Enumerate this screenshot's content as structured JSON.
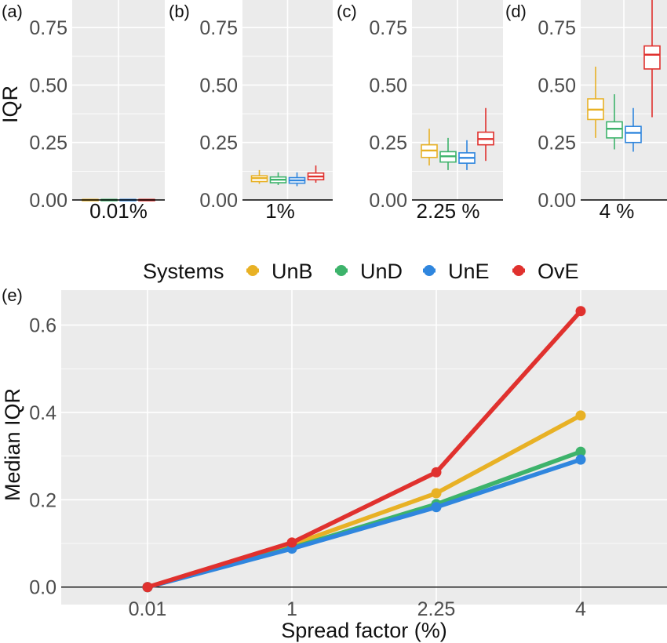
{
  "colors": {
    "UnB": "#E8B125",
    "UnD": "#3DB36B",
    "UnE": "#2F86DE",
    "OvE": "#E0312E",
    "panel_bg": "#EBEBEB",
    "grid": "#FFFFFF"
  },
  "chart_data": [
    {
      "type": "box",
      "panel_label": "(a)",
      "xlabel": "0.01%",
      "ylabel": "IQR",
      "ylim": [
        0,
        0.87
      ],
      "yticks": [
        "0.00",
        "0.25",
        "0.50",
        "0.75"
      ],
      "grid": true,
      "series": [
        {
          "name": "UnB",
          "min": 0.0,
          "q1": 0.0,
          "median": 0.001,
          "q3": 0.002,
          "max": 0.003
        },
        {
          "name": "UnD",
          "min": 0.0,
          "q1": 0.0,
          "median": 0.001,
          "q3": 0.002,
          "max": 0.003
        },
        {
          "name": "UnE",
          "min": 0.0,
          "q1": 0.0,
          "median": 0.001,
          "q3": 0.002,
          "max": 0.003
        },
        {
          "name": "OvE",
          "min": 0.0,
          "q1": 0.0,
          "median": 0.001,
          "q3": 0.002,
          "max": 0.003
        }
      ]
    },
    {
      "type": "box",
      "panel_label": "(b)",
      "xlabel": "1%",
      "ylim": [
        0,
        0.87
      ],
      "yticks": [
        "0.00",
        "0.25",
        "0.50",
        "0.75"
      ],
      "grid": true,
      "series": [
        {
          "name": "UnB",
          "min": 0.07,
          "q1": 0.08,
          "median": 0.095,
          "q3": 0.105,
          "max": 0.13
        },
        {
          "name": "UnD",
          "min": 0.065,
          "q1": 0.075,
          "median": 0.088,
          "q3": 0.1,
          "max": 0.12
        },
        {
          "name": "UnE",
          "min": 0.06,
          "q1": 0.073,
          "median": 0.085,
          "q3": 0.097,
          "max": 0.12
        },
        {
          "name": "OvE",
          "min": 0.075,
          "q1": 0.088,
          "median": 0.102,
          "q3": 0.117,
          "max": 0.15
        }
      ]
    },
    {
      "type": "box",
      "panel_label": "(c)",
      "xlabel": "2.25 %",
      "ylim": [
        0,
        0.87
      ],
      "yticks": [
        "0.00",
        "0.25",
        "0.50",
        "0.75"
      ],
      "grid": true,
      "series": [
        {
          "name": "UnB",
          "min": 0.15,
          "q1": 0.185,
          "median": 0.215,
          "q3": 0.24,
          "max": 0.31
        },
        {
          "name": "UnD",
          "min": 0.13,
          "q1": 0.165,
          "median": 0.19,
          "q3": 0.21,
          "max": 0.27
        },
        {
          "name": "UnE",
          "min": 0.13,
          "q1": 0.16,
          "median": 0.183,
          "q3": 0.205,
          "max": 0.26
        },
        {
          "name": "OvE",
          "min": 0.17,
          "q1": 0.24,
          "median": 0.265,
          "q3": 0.295,
          "max": 0.4
        }
      ]
    },
    {
      "type": "box",
      "panel_label": "(d)",
      "xlabel": "4 %",
      "ylim": [
        0,
        0.87
      ],
      "yticks": [
        "0.00",
        "0.25",
        "0.50",
        "0.75"
      ],
      "grid": true,
      "series": [
        {
          "name": "UnB",
          "min": 0.27,
          "q1": 0.35,
          "median": 0.393,
          "q3": 0.44,
          "max": 0.58
        },
        {
          "name": "UnD",
          "min": 0.22,
          "q1": 0.27,
          "median": 0.31,
          "q3": 0.34,
          "max": 0.46
        },
        {
          "name": "UnE",
          "min": 0.21,
          "q1": 0.25,
          "median": 0.292,
          "q3": 0.32,
          "max": 0.4
        },
        {
          "name": "OvE",
          "min": 0.36,
          "q1": 0.57,
          "median": 0.632,
          "q3": 0.67,
          "max": 0.87
        }
      ]
    },
    {
      "type": "line",
      "panel_label": "(e)",
      "categories": [
        "0.01",
        "1",
        "2.25",
        "4"
      ],
      "xlabel": "Spread factor (%)",
      "ylabel": "Median IQR",
      "ylim": [
        -0.04,
        0.68
      ],
      "yticks": [
        "0.0",
        "0.2",
        "0.4",
        "0.6"
      ],
      "grid": true,
      "legend": {
        "title": "Systems",
        "position": "top"
      },
      "series": [
        {
          "name": "UnB",
          "values": [
            0.0,
            0.097,
            0.215,
            0.393
          ]
        },
        {
          "name": "UnD",
          "values": [
            0.0,
            0.09,
            0.19,
            0.31
          ]
        },
        {
          "name": "UnE",
          "values": [
            0.0,
            0.088,
            0.183,
            0.292
          ]
        },
        {
          "name": "OvE",
          "values": [
            0.0,
            0.102,
            0.263,
            0.632
          ]
        }
      ]
    }
  ]
}
